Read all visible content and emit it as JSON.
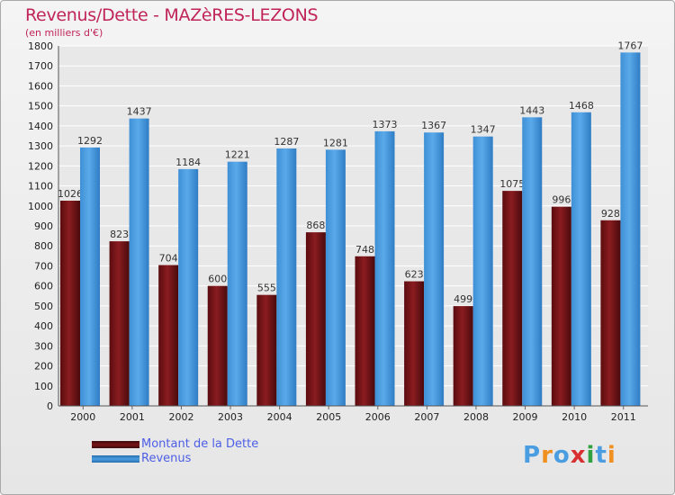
{
  "chart_data": {
    "type": "bar",
    "title": "Revenus/Dette - MAZèRES-LEZONS",
    "subtitle": "(en milliers d'€)",
    "categories": [
      "2000",
      "2001",
      "2002",
      "2003",
      "2004",
      "2005",
      "2006",
      "2007",
      "2008",
      "2009",
      "2010",
      "2011"
    ],
    "series": [
      {
        "name": "Montant de la Dette",
        "color": "#7a1518",
        "values": [
          1026,
          823,
          704,
          600,
          555,
          868,
          748,
          623,
          499,
          1075,
          996,
          928
        ]
      },
      {
        "name": "Revenus",
        "color": "#4a9de0",
        "values": [
          1292,
          1437,
          1184,
          1221,
          1287,
          1281,
          1373,
          1367,
          1347,
          1443,
          1468,
          1767
        ]
      }
    ],
    "ylim": [
      0,
      1800
    ],
    "yticks": [
      0,
      100,
      200,
      300,
      400,
      500,
      600,
      700,
      800,
      900,
      1000,
      1100,
      1200,
      1300,
      1400,
      1500,
      1600,
      1700,
      1800
    ],
    "grid": true,
    "legend_position": "bottom-left"
  },
  "logo": {
    "letters": [
      "P",
      "r",
      "o",
      "x",
      "i",
      "t",
      "i"
    ],
    "colors": [
      "#4a9de0",
      "#f09020",
      "#4a9de0",
      "#d83030",
      "#30a040",
      "#4a9de0",
      "#f09020"
    ]
  }
}
